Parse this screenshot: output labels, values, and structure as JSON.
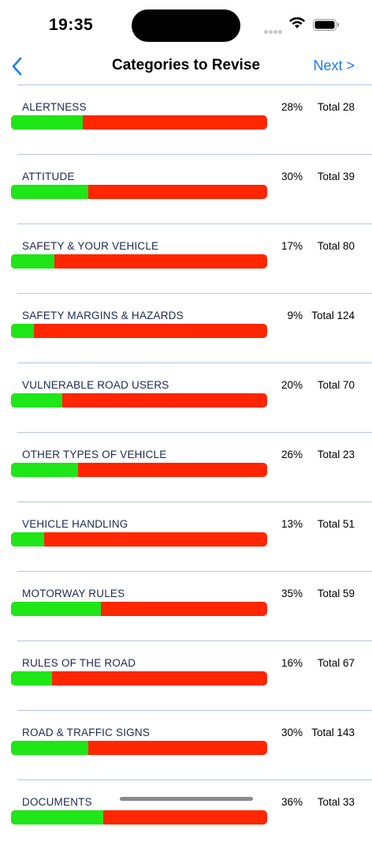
{
  "status_bar": {
    "time": "19:35"
  },
  "nav": {
    "back_icon": "chevron-left-icon",
    "title": "Categories to Revise",
    "next_label": "Next >"
  },
  "colors": {
    "accent": "#1a7cf5",
    "progress_good": "#1ee617",
    "progress_bad": "#ff2600",
    "separator": "#b3c3e6"
  },
  "categories": [
    {
      "name": "ALERTNESS",
      "percent_label": "28%",
      "percent": 28,
      "total_label": "Total 28"
    },
    {
      "name": "ATTITUDE",
      "percent_label": "30%",
      "percent": 30,
      "total_label": "Total 39"
    },
    {
      "name": "SAFETY & YOUR VEHICLE",
      "percent_label": "17%",
      "percent": 17,
      "total_label": "Total 80"
    },
    {
      "name": "SAFETY MARGINS & HAZARDS",
      "percent_label": "9%",
      "percent": 9,
      "total_label": "Total 124"
    },
    {
      "name": "VULNERABLE ROAD USERS",
      "percent_label": "20%",
      "percent": 20,
      "total_label": "Total 70"
    },
    {
      "name": "OTHER TYPES OF VEHICLE",
      "percent_label": "26%",
      "percent": 26,
      "total_label": "Total 23"
    },
    {
      "name": "VEHICLE HANDLING",
      "percent_label": "13%",
      "percent": 13,
      "total_label": "Total 51"
    },
    {
      "name": "MOTORWAY RULES",
      "percent_label": "35%",
      "percent": 35,
      "total_label": "Total 59"
    },
    {
      "name": "RULES OF THE ROAD",
      "percent_label": "16%",
      "percent": 16,
      "total_label": "Total 67"
    },
    {
      "name": "ROAD & TRAFFIC SIGNS",
      "percent_label": "30%",
      "percent": 30,
      "total_label": "Total 143"
    },
    {
      "name": "DOCUMENTS",
      "percent_label": "36%",
      "percent": 36,
      "total_label": "Total 33"
    }
  ]
}
